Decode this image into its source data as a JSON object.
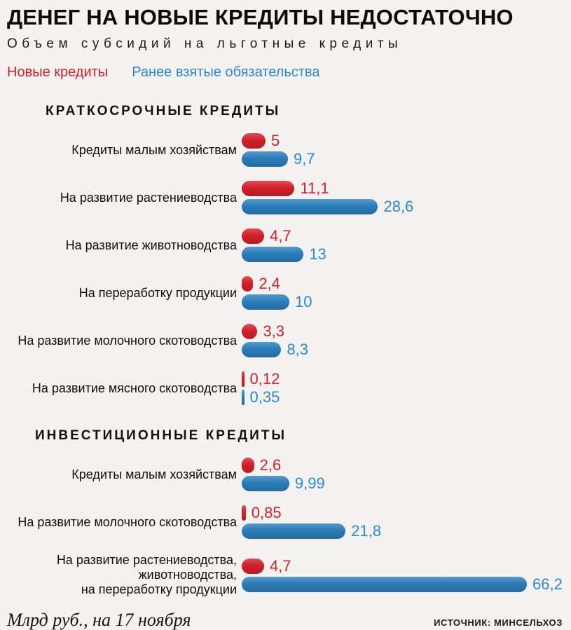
{
  "title": "ДЕНЕГ НА НОВЫЕ КРЕДИТЫ НЕДОСТАТОЧНО",
  "subtitle": "Объем субсидий на льготные кредиты",
  "legend": {
    "new_credits": "Новые кредиты",
    "prior_obligations": "Ранее взятые обязательства"
  },
  "colors": {
    "new_credits": "#d2202a",
    "prior_obligations": "#2b7cb9",
    "new_credits_text": "#d2202a",
    "prior_obligations_text": "#3087c8",
    "background": "#f3f2f0"
  },
  "footer": {
    "units_note": "Млрд руб., на 17 ноября",
    "source": "ИСТОЧНИК: МИНСЕЛЬХОЗ"
  },
  "chart_data": {
    "type": "bar",
    "orientation": "horizontal",
    "units": "млрд руб.",
    "title": "ДЕНЕГ НА НОВЫЕ КРЕДИТЫ НЕДОСТАТОЧНО",
    "subtitle": "Объем субсидий на льготные кредиты",
    "series_names": [
      "Новые кредиты",
      "Ранее взятые обязательства"
    ],
    "legend_position": "top-left",
    "xlim": [
      0,
      66.2
    ],
    "grid": false,
    "sections": [
      {
        "header": "КРАТКОСРОЧНЫЕ КРЕДИТЫ",
        "rows": [
          {
            "label": "Кредиты малым хозяйствам",
            "new": 5,
            "new_label": "5",
            "prior": 9.7,
            "prior_label": "9,7"
          },
          {
            "label": "На развитие растениеводства",
            "new": 11.1,
            "new_label": "11,1",
            "prior": 28.6,
            "prior_label": "28,6"
          },
          {
            "label": "На развитие животноводства",
            "new": 4.7,
            "new_label": "4,7",
            "prior": 13,
            "prior_label": "13"
          },
          {
            "label": "На переработку продукции",
            "new": 2.4,
            "new_label": "2,4",
            "prior": 10,
            "prior_label": "10"
          },
          {
            "label": "На развитие молочного скотоводства",
            "new": 3.3,
            "new_label": "3,3",
            "prior": 8.3,
            "prior_label": "8,3"
          },
          {
            "label": "На развитие мясного скотоводства",
            "new": 0.12,
            "new_label": "0,12",
            "prior": 0.35,
            "prior_label": "0,35"
          }
        ]
      },
      {
        "header": "ИНВЕСТИЦИОННЫЕ КРЕДИТЫ",
        "rows": [
          {
            "label": "Кредиты малым хозяйствам",
            "new": 2.6,
            "new_label": "2,6",
            "prior": 9.99,
            "prior_label": "9,99"
          },
          {
            "label": "На развитие молочного скотоводства",
            "new": 0.85,
            "new_label": "0,85",
            "prior": 21.8,
            "prior_label": "21,8"
          },
          {
            "label": "На развитие растениеводства,\nживотноводства,\nна переработку продукции",
            "new": 4.7,
            "new_label": "4,7",
            "prior": 66.2,
            "prior_label": "66,2"
          }
        ]
      }
    ]
  }
}
